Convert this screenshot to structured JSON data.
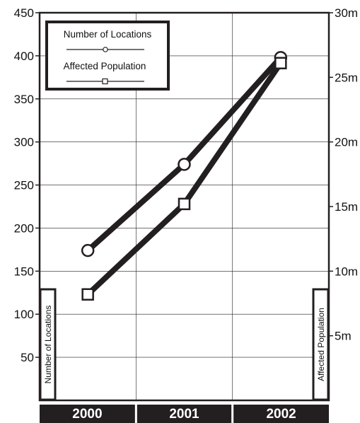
{
  "chart_data": {
    "type": "line",
    "categories": [
      "2000",
      "2001",
      "2002"
    ],
    "series": [
      {
        "name": "Number of Locations",
        "axis": "left",
        "marker": "circle",
        "values": [
          174,
          274,
          398
        ]
      },
      {
        "name": "Affected Population",
        "axis": "right",
        "marker": "square",
        "values": [
          8200000,
          15200000,
          26100000
        ]
      }
    ],
    "left_axis": {
      "label": "Number of Locations",
      "ylim": [
        0,
        450
      ],
      "ticks": [
        50,
        100,
        150,
        200,
        250,
        300,
        350,
        400,
        450
      ],
      "tick_labels": [
        "50",
        "100",
        "150",
        "200",
        "250",
        "300",
        "350",
        "400",
        "450"
      ]
    },
    "right_axis": {
      "label": "Affected Population",
      "ylim": [
        0,
        30000000
      ],
      "ticks": [
        5000000,
        10000000,
        15000000,
        20000000,
        25000000,
        30000000
      ],
      "tick_labels": [
        "5m",
        "10m",
        "15m",
        "20m",
        "25m",
        "30m"
      ]
    },
    "grid": true,
    "legend_position": "top-left",
    "colors": {
      "line": "#231f20",
      "marker_fill": "#ffffff",
      "category_bar": "#231f20",
      "background": "#ffffff"
    }
  }
}
